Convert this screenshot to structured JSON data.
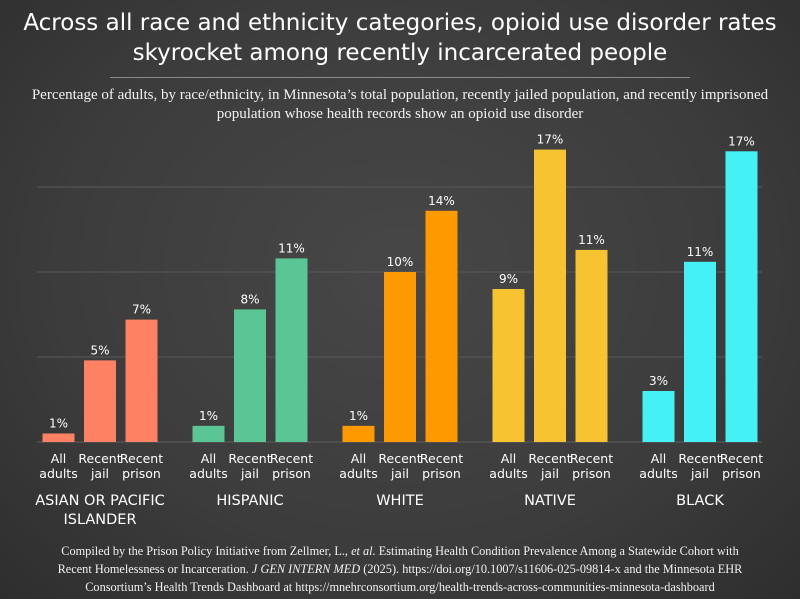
{
  "title": "Across all race and ethnicity categories, opioid use disorder rates skyrocket among recently incarcerated people",
  "subtitle": "Percentage of adults, by race/ethnicity, in Minnesota’s total population, recently jailed population, and recently imprisoned population whose health records show an opioid use disorder",
  "footer": {
    "line1a": "Compiled by the Prison Policy Initiative from Zellmer, L., ",
    "line1b": "et al.",
    "line1c": " Estimating Health Condition Prevalence Among a Statewide Cohort with",
    "line2a": "Recent Homelessness or Incarceration. ",
    "line2b": "J GEN INTERN MED",
    "line2c": " (2025). https://doi.org/10.1007/s11606-025-09814-x and the Minnesota EHR",
    "line3": "Consortium’s Health Trends Dashboard at https://mnehrconsortium.org/health-trends-across-communities-minnesota-dashboard"
  },
  "chart_data": {
    "type": "bar",
    "ylim": [
      0,
      20
    ],
    "grid": true,
    "bar_categories": [
      [
        "All",
        "adults"
      ],
      [
        "Recent",
        "jail"
      ],
      [
        "Recent",
        "prison"
      ]
    ],
    "groups": [
      {
        "name": [
          "ASIAN OR PACIFIC",
          "ISLANDER"
        ],
        "color": "#ff8163",
        "values": [
          0.5,
          4.8,
          7.2
        ],
        "labels": [
          "1%",
          "5%",
          "7%"
        ]
      },
      {
        "name": [
          "HISPANIC"
        ],
        "color": "#5ac595",
        "values": [
          0.95,
          7.8,
          10.8
        ],
        "labels": [
          "1%",
          "8%",
          "11%"
        ]
      },
      {
        "name": [
          "WHITE"
        ],
        "color": "#ff9900",
        "values": [
          0.95,
          10,
          13.6
        ],
        "labels": [
          "1%",
          "10%",
          "14%"
        ]
      },
      {
        "name": [
          "NATIVE"
        ],
        "color": "#f7c331",
        "values": [
          9,
          17.2,
          11.3
        ],
        "labels": [
          "9%",
          "17%",
          "11%"
        ]
      },
      {
        "name": [
          "BLACK"
        ],
        "color": "#44f1f5",
        "values": [
          3,
          10.6,
          17.1
        ],
        "labels": [
          "3%",
          "11%",
          "17%"
        ]
      }
    ]
  }
}
